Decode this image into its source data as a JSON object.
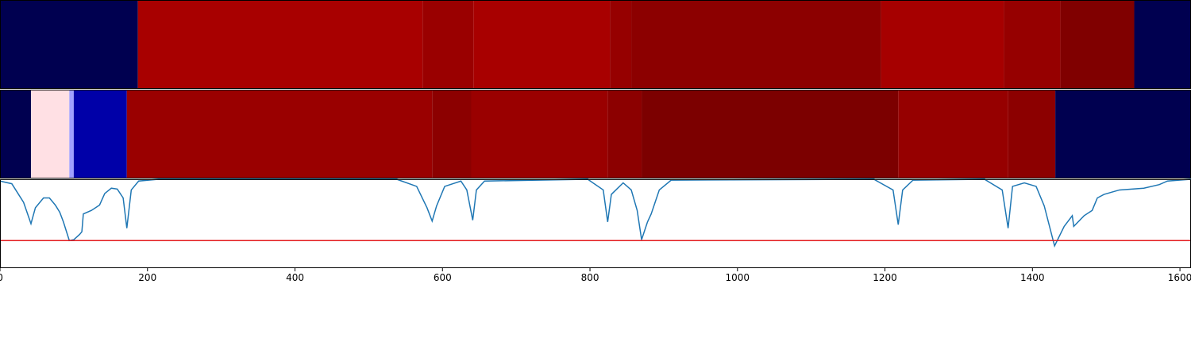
{
  "chart_data": [
    {
      "type": "heatmap",
      "xlim": [
        0,
        1615
      ],
      "bins": [
        0,
        187,
        573,
        642,
        827,
        856,
        1195,
        1361,
        1438,
        1538,
        1615
      ],
      "colors": [
        "#000050",
        "#a80000",
        "#9a0000",
        "#a80000",
        "#960000",
        "#8c0000",
        "#a60000",
        "#960000",
        "#800000",
        "#000050"
      ]
    },
    {
      "type": "heatmap",
      "xlim": [
        0,
        1615
      ],
      "bins": [
        0,
        42,
        94,
        100,
        172,
        586,
        639,
        824,
        870,
        1218,
        1367,
        1431,
        1615
      ],
      "colors": [
        "#000050",
        "#ffe0e4",
        "#a0a0ff",
        "#0000a8",
        "#9a0000",
        "#8c0000",
        "#9a0000",
        "#8c0000",
        "#7c0000",
        "#960000",
        "#8c0000",
        "#000050"
      ]
    },
    {
      "type": "line",
      "xlim": [
        0,
        1615
      ],
      "ylim": [
        0,
        1
      ],
      "color": "#1f77b4",
      "xticks": [
        0,
        200,
        400,
        600,
        800,
        1000,
        1200,
        1400,
        1600
      ],
      "hline": {
        "value": 0.31,
        "color": "#e31a1c"
      },
      "x": [
        0,
        16,
        32,
        42,
        48,
        59,
        67,
        75,
        81,
        86,
        94,
        100,
        108,
        111,
        113,
        124,
        135,
        142,
        151,
        159,
        167,
        172,
        178,
        188,
        215,
        538,
        565,
        579,
        586,
        592,
        603,
        625,
        633,
        641,
        646,
        657,
        797,
        818,
        824,
        829,
        845,
        856,
        864,
        870,
        878,
        883,
        894,
        910,
        1185,
        1211,
        1218,
        1224,
        1238,
        1335,
        1359,
        1367,
        1373,
        1389,
        1405,
        1416,
        1430,
        1443,
        1454,
        1456,
        1470,
        1481,
        1488,
        1497,
        1518,
        1551,
        1572,
        1583,
        1615
      ],
      "values": [
        0.98,
        0.95,
        0.74,
        0.5,
        0.68,
        0.79,
        0.79,
        0.71,
        0.63,
        0.52,
        0.31,
        0.32,
        0.38,
        0.41,
        0.61,
        0.65,
        0.71,
        0.84,
        0.9,
        0.89,
        0.79,
        0.45,
        0.88,
        0.98,
        1.0,
        1.0,
        0.92,
        0.68,
        0.53,
        0.7,
        0.92,
        0.98,
        0.88,
        0.54,
        0.88,
        0.98,
        1.0,
        0.88,
        0.52,
        0.83,
        0.96,
        0.88,
        0.65,
        0.32,
        0.52,
        0.61,
        0.88,
        0.99,
        1.0,
        0.88,
        0.49,
        0.88,
        0.99,
        1.0,
        0.88,
        0.45,
        0.92,
        0.96,
        0.92,
        0.7,
        0.25,
        0.47,
        0.59,
        0.47,
        0.59,
        0.65,
        0.79,
        0.83,
        0.88,
        0.9,
        0.94,
        0.98,
        1.0
      ]
    }
  ]
}
